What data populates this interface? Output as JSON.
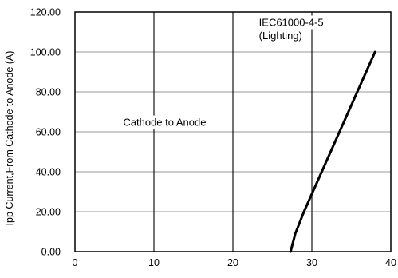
{
  "chart_data": {
    "type": "line",
    "title": "",
    "xlabel": "",
    "ylabel": "Ipp Current,From Cathode to Anode (A)",
    "xlim": [
      0,
      40
    ],
    "ylim": [
      0,
      120
    ],
    "x_ticks": [
      0,
      10,
      20,
      30,
      40
    ],
    "y_ticks": [
      0,
      20,
      40,
      60,
      80,
      100,
      120
    ],
    "x_tick_labels": [
      "0",
      "10",
      "20",
      "30",
      "40"
    ],
    "y_tick_labels": [
      "0.00",
      "20.00",
      "40.00",
      "60.00",
      "80.00",
      "100.00",
      "120.00"
    ],
    "grid": true,
    "series": [
      {
        "name": "",
        "color": "#000000",
        "points": [
          {
            "x": 27.3,
            "y": 0
          },
          {
            "x": 27.9,
            "y": 9
          },
          {
            "x": 29.0,
            "y": 20
          },
          {
            "x": 38.0,
            "y": 100
          }
        ]
      }
    ],
    "annotations": [
      {
        "text": "IEC61000-4-5",
        "x": 23.3,
        "y": 113
      },
      {
        "text": "(Lighting)",
        "x": 23.3,
        "y": 106.5
      },
      {
        "text": "Cathode to Anode",
        "x": 6.1,
        "y": 63
      }
    ]
  }
}
